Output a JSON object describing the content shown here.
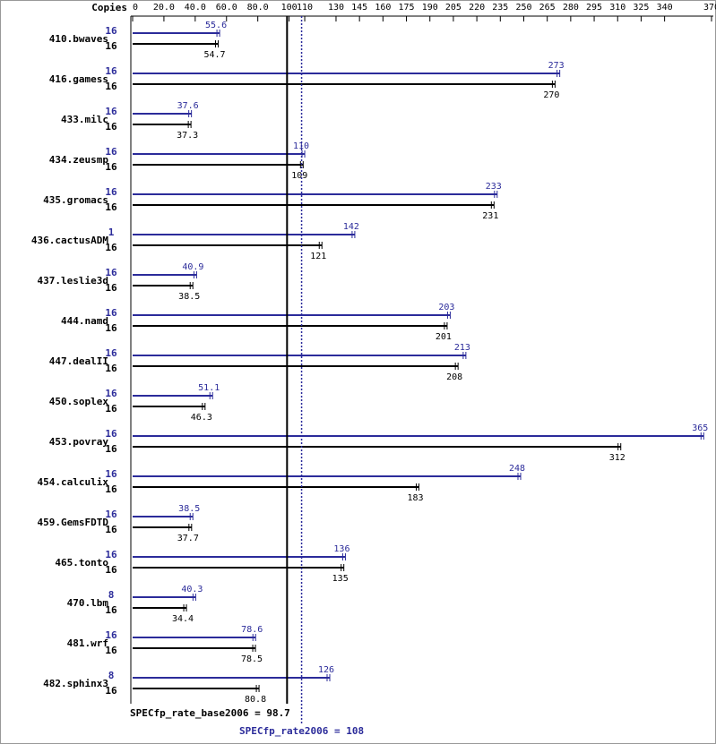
{
  "chart_data": {
    "type": "bar",
    "orientation": "horizontal",
    "header": "Copies",
    "xlim": [
      0,
      370
    ],
    "xticks": [
      0,
      {
        "value": 20,
        "label": "20.0"
      },
      {
        "value": 40,
        "label": "40.0"
      },
      {
        "value": 60,
        "label": "60.0"
      },
      {
        "value": 80,
        "label": "80.0"
      },
      100,
      110,
      130,
      145,
      160,
      175,
      190,
      205,
      220,
      235,
      250,
      265,
      280,
      295,
      310,
      325,
      340,
      370
    ],
    "categories": [
      "410.bwaves",
      "416.gamess",
      "433.milc",
      "434.zeusmp",
      "435.gromacs",
      "436.cactusADM",
      "437.leslie3d",
      "444.namd",
      "447.dealII",
      "450.soplex",
      "453.povray",
      "454.calculix",
      "459.GemsFDTD",
      "465.tonto",
      "470.lbm",
      "481.wrf",
      "482.sphinx3"
    ],
    "series": [
      {
        "color": "#2b2b9a",
        "copies": [
          16,
          16,
          16,
          16,
          16,
          1,
          16,
          16,
          16,
          16,
          16,
          16,
          16,
          16,
          8,
          16,
          8
        ],
        "values": [
          55.6,
          273,
          37.6,
          110,
          233,
          142,
          40.9,
          203,
          213,
          51.1,
          365,
          248,
          38.5,
          136,
          40.3,
          78.6,
          126
        ]
      },
      {
        "color": "#000000",
        "copies": [
          16,
          16,
          16,
          16,
          16,
          16,
          16,
          16,
          16,
          16,
          16,
          16,
          16,
          16,
          16,
          16,
          16
        ],
        "values": [
          54.7,
          270,
          37.3,
          109,
          231,
          121,
          38.5,
          201,
          208,
          46.3,
          312,
          183,
          37.7,
          135,
          34.4,
          78.5,
          80.8
        ]
      }
    ],
    "summaries": [
      {
        "label": "SPECfp_rate_base2006 = 98.7",
        "value": 98.7,
        "color": "#000000",
        "dashed": false
      },
      {
        "label": "SPECfp_rate2006 = 108",
        "value": 108,
        "color": "#2b2b9a",
        "dashed": true
      }
    ]
  }
}
